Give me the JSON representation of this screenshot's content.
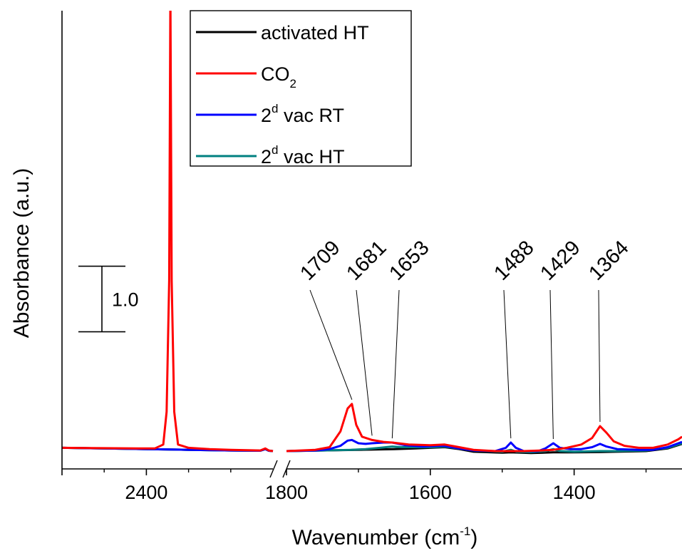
{
  "chart_data": {
    "type": "line",
    "xlabel": "Wavenumber (cm",
    "xlabel_sup": "-1",
    "xlabel_end": ")",
    "ylabel": "Absorbance (a.u.)",
    "axis_break": true,
    "x_segments": [
      {
        "range": [
          2600,
          2100
        ],
        "ticks": [
          2400
        ],
        "tick_labels": [
          "2400"
        ]
      },
      {
        "range": [
          1800,
          1250
        ],
        "ticks": [
          1800,
          1600,
          1400
        ],
        "tick_labels": [
          "1800",
          "1600",
          "1400"
        ]
      }
    ],
    "ylim": [
      -0.12,
      3.3
    ],
    "scale_bar": {
      "value": 1.0,
      "label": "1.0",
      "y_from": 1.82,
      "y_to": 2.82
    },
    "grid": false,
    "legend": "top-center",
    "series": [
      {
        "name": "activated HT",
        "color": "#000000",
        "segments": [
          [
            [
              2600,
              0.05
            ],
            [
              2500,
              0.04
            ],
            [
              2400,
              0.03
            ],
            [
              2300,
              0.02
            ],
            [
              2200,
              0.01
            ],
            [
              2130,
              0.005
            ],
            [
              2118,
              0.03
            ],
            [
              2110,
              0.005
            ],
            [
              2100,
              0.0
            ]
          ],
          [
            [
              1800,
              0.0
            ],
            [
              1750,
              0.01
            ],
            [
              1700,
              0.02
            ],
            [
              1650,
              0.03
            ],
            [
              1620,
              0.04
            ],
            [
              1600,
              0.05
            ],
            [
              1580,
              0.06
            ],
            [
              1560,
              0.03
            ],
            [
              1540,
              -0.01
            ],
            [
              1500,
              -0.025
            ],
            [
              1488,
              -0.02
            ],
            [
              1460,
              -0.03
            ],
            [
              1429,
              -0.02
            ],
            [
              1400,
              -0.02
            ],
            [
              1364,
              -0.015
            ],
            [
              1340,
              -0.01
            ],
            [
              1300,
              0.0
            ],
            [
              1270,
              0.04
            ],
            [
              1250,
              0.11
            ]
          ]
        ]
      },
      {
        "name": "CO",
        "name_sub": "2",
        "name_display": [
          "CO",
          "2"
        ],
        "color": "#ff0000",
        "segments": [
          [
            [
              2600,
              0.05
            ],
            [
              2500,
              0.045
            ],
            [
              2420,
              0.04
            ],
            [
              2380,
              0.04
            ],
            [
              2360,
              0.1
            ],
            [
              2352,
              0.6
            ],
            [
              2346,
              2.6
            ],
            [
              2343,
              7.0
            ],
            [
              2340,
              2.6
            ],
            [
              2334,
              0.6
            ],
            [
              2325,
              0.1
            ],
            [
              2300,
              0.05
            ],
            [
              2250,
              0.03
            ],
            [
              2200,
              0.02
            ],
            [
              2130,
              0.01
            ],
            [
              2118,
              0.04
            ],
            [
              2110,
              0.01
            ],
            [
              2100,
              0.0
            ]
          ],
          [
            [
              1800,
              0.0
            ],
            [
              1760,
              0.02
            ],
            [
              1740,
              0.06
            ],
            [
              1725,
              0.3
            ],
            [
              1715,
              0.65
            ],
            [
              1709,
              0.72
            ],
            [
              1703,
              0.4
            ],
            [
              1695,
              0.22
            ],
            [
              1681,
              0.17
            ],
            [
              1665,
              0.14
            ],
            [
              1653,
              0.13
            ],
            [
              1630,
              0.1
            ],
            [
              1600,
              0.09
            ],
            [
              1580,
              0.1
            ],
            [
              1560,
              0.06
            ],
            [
              1540,
              0.02
            ],
            [
              1510,
              0.0
            ],
            [
              1490,
              0.0
            ],
            [
              1470,
              0.0
            ],
            [
              1445,
              0.01
            ],
            [
              1429,
              0.02
            ],
            [
              1410,
              0.05
            ],
            [
              1390,
              0.1
            ],
            [
              1375,
              0.2
            ],
            [
              1364,
              0.38
            ],
            [
              1355,
              0.28
            ],
            [
              1345,
              0.15
            ],
            [
              1330,
              0.08
            ],
            [
              1310,
              0.05
            ],
            [
              1290,
              0.05
            ],
            [
              1270,
              0.1
            ],
            [
              1255,
              0.18
            ],
            [
              1250,
              0.22
            ]
          ]
        ]
      },
      {
        "name": "2nd vac RT",
        "name_display": [
          "2",
          "d",
          " vac RT"
        ],
        "color": "#0000ff",
        "segments": [
          [
            [
              2600,
              0.05
            ],
            [
              2500,
              0.04
            ],
            [
              2400,
              0.03
            ],
            [
              2300,
              0.02
            ],
            [
              2200,
              0.01
            ],
            [
              2130,
              0.005
            ],
            [
              2118,
              0.03
            ],
            [
              2110,
              0.005
            ],
            [
              2100,
              0.0
            ]
          ],
          [
            [
              1800,
              0.0
            ],
            [
              1760,
              0.01
            ],
            [
              1740,
              0.03
            ],
            [
              1725,
              0.08
            ],
            [
              1715,
              0.16
            ],
            [
              1709,
              0.17
            ],
            [
              1700,
              0.12
            ],
            [
              1690,
              0.11
            ],
            [
              1681,
              0.12
            ],
            [
              1665,
              0.13
            ],
            [
              1653,
              0.13
            ],
            [
              1635,
              0.09
            ],
            [
              1610,
              0.07
            ],
            [
              1590,
              0.08
            ],
            [
              1580,
              0.08
            ],
            [
              1560,
              0.04
            ],
            [
              1540,
              0.01
            ],
            [
              1510,
              0.0
            ],
            [
              1495,
              0.05
            ],
            [
              1488,
              0.13
            ],
            [
              1481,
              0.05
            ],
            [
              1470,
              0.0
            ],
            [
              1450,
              0.0
            ],
            [
              1440,
              0.04
            ],
            [
              1429,
              0.12
            ],
            [
              1420,
              0.05
            ],
            [
              1405,
              0.03
            ],
            [
              1390,
              0.03
            ],
            [
              1375,
              0.06
            ],
            [
              1364,
              0.11
            ],
            [
              1355,
              0.07
            ],
            [
              1340,
              0.03
            ],
            [
              1310,
              0.02
            ],
            [
              1290,
              0.02
            ],
            [
              1270,
              0.06
            ],
            [
              1250,
              0.14
            ]
          ]
        ]
      },
      {
        "name": "2nd vac HT",
        "name_display": [
          "2",
          "d",
          " vac HT"
        ],
        "color": "#008080",
        "segments": [
          [
            [
              2600,
              0.05
            ],
            [
              2500,
              0.04
            ],
            [
              2400,
              0.03
            ],
            [
              2300,
              0.02
            ],
            [
              2200,
              0.01
            ],
            [
              2130,
              0.005
            ],
            [
              2118,
              0.03
            ],
            [
              2110,
              0.005
            ],
            [
              2100,
              0.0
            ]
          ],
          [
            [
              1800,
              0.0
            ],
            [
              1750,
              0.01
            ],
            [
              1710,
              0.02
            ],
            [
              1690,
              0.03
            ],
            [
              1670,
              0.05
            ],
            [
              1653,
              0.07
            ],
            [
              1640,
              0.06
            ],
            [
              1620,
              0.06
            ],
            [
              1600,
              0.06
            ],
            [
              1580,
              0.07
            ],
            [
              1560,
              0.04
            ],
            [
              1540,
              0.01
            ],
            [
              1500,
              -0.01
            ],
            [
              1488,
              0.02
            ],
            [
              1480,
              -0.01
            ],
            [
              1460,
              -0.015
            ],
            [
              1440,
              0.0
            ],
            [
              1429,
              0.03
            ],
            [
              1420,
              0.0
            ],
            [
              1400,
              -0.01
            ],
            [
              1364,
              0.0
            ],
            [
              1340,
              0.0
            ],
            [
              1300,
              0.01
            ],
            [
              1270,
              0.05
            ],
            [
              1250,
              0.12
            ]
          ]
        ]
      }
    ],
    "annotations": [
      {
        "label": "1709",
        "x": 1709,
        "y": 0.72
      },
      {
        "label": "1681",
        "x": 1681,
        "y": 0.17
      },
      {
        "label": "1653",
        "x": 1653,
        "y": 0.13
      },
      {
        "label": "1488",
        "x": 1488,
        "y": 0.13
      },
      {
        "label": "1429",
        "x": 1429,
        "y": 0.12
      },
      {
        "label": "1364",
        "x": 1364,
        "y": 0.38
      }
    ]
  }
}
